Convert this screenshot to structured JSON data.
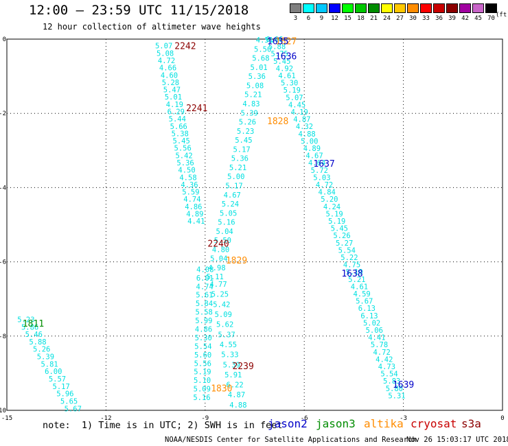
{
  "header": {
    "title": "12:00 – 23:59 UTC 11/15/2018",
    "subtitle": "12 hour collection of altimeter wave heights"
  },
  "legend": {
    "units": "(ft)",
    "bins": [
      {
        "label": "3",
        "color": "#7f7f7f"
      },
      {
        "label": "6",
        "color": "#00ffff"
      },
      {
        "label": "9",
        "color": "#00c8ff"
      },
      {
        "label": "12",
        "color": "#0000ff"
      },
      {
        "label": "15",
        "color": "#00ff00"
      },
      {
        "label": "18",
        "color": "#00c800"
      },
      {
        "label": "21",
        "color": "#008c00"
      },
      {
        "label": "24",
        "color": "#ffff00"
      },
      {
        "label": "27",
        "color": "#ffc800"
      },
      {
        "label": "30",
        "color": "#ff8c00"
      },
      {
        "label": "33",
        "color": "#ff0000"
      },
      {
        "label": "36",
        "color": "#c80000"
      },
      {
        "label": "39",
        "color": "#8c0000"
      },
      {
        "label": "42",
        "color": "#a000a0"
      },
      {
        "label": "45",
        "color": "#c864c8"
      },
      {
        "label": "70",
        "color": "#000000"
      }
    ]
  },
  "chart_data": {
    "type": "scatter",
    "xlim": [
      -15,
      0
    ],
    "ylim": [
      -10,
      0
    ],
    "x_ticks": [
      "-15",
      "-12",
      "-9",
      "-6",
      "-3",
      "0"
    ],
    "y_ticks": [
      "0",
      "-2",
      "-4",
      "-6",
      "-8",
      "-10"
    ],
    "grid": true,
    "tracks": [
      {
        "x0": -14.42,
        "y0": -7.55,
        "x1": -13.0,
        "y1": -9.95,
        "values": [
          "5.23",
          "5.86",
          "5.46",
          "5.88",
          "5.26",
          "5.39",
          "5.81",
          "6.00",
          "5.57",
          "5.17",
          "5.96",
          "5.65",
          "5.67"
        ]
      },
      {
        "x0": -10.25,
        "y0": -0.18,
        "x1": -9.27,
        "y1": -4.9,
        "values": [
          "5.07",
          "5.08",
          "4.72",
          "4.66",
          "4.60",
          "5.28",
          "5.47",
          "5.01",
          "4.19",
          "6.29",
          "5.44",
          "5.66",
          "5.38",
          "5.45",
          "5.56",
          "5.42",
          "5.36",
          "4.50",
          "4.58",
          "4.36",
          "5.59",
          "4.74",
          "4.86",
          "4.89",
          "4.41"
        ]
      },
      {
        "x0": -9.0,
        "y0": -6.2,
        "x1": -9.1,
        "y1": -9.65,
        "values": [
          "4.08",
          "6.01",
          "4.74",
          "5.61",
          "5.84",
          "5.58",
          "5.99",
          "4.86",
          "5.30",
          "5.54",
          "5.60",
          "5.56",
          "5.19",
          "5.10",
          "5.09",
          "5.16"
        ]
      },
      {
        "x0": -7.2,
        "y0": -0.02,
        "x1": -8.7,
        "y1": -6.4,
        "values": [
          "4.51",
          "5.50",
          "5.68",
          "5.01",
          "5.36",
          "5.08",
          "5.21",
          "4.83",
          "5.39",
          "5.26",
          "5.23",
          "5.45",
          "5.17",
          "5.36",
          "5.21",
          "5.00",
          "5.17",
          "4.67",
          "5.24",
          "5.05",
          "5.16",
          "5.04",
          "5.50",
          "4.80",
          "5.04",
          "4.98",
          "5.11"
        ]
      },
      {
        "x0": -8.6,
        "y0": -6.6,
        "x1": -8.0,
        "y1": -9.85,
        "values": [
          "4.77",
          "5.25",
          "5.42",
          "5.09",
          "5.62",
          "5.37",
          "4.55",
          "5.33",
          "5.39",
          "5.91",
          "6.22",
          "4.87",
          "4.88"
        ]
      },
      {
        "x0": -6.9,
        "y0": -0.0,
        "x1": -3.2,
        "y1": -9.6,
        "values": [
          "6.06",
          "5.88",
          "5.75",
          "5.45",
          "4.92",
          "4.61",
          "5.30",
          "5.19",
          "5.07",
          "4.45",
          "4.19",
          "4.87",
          "4.32",
          "4.88",
          "5.00",
          "4.89",
          "4.67",
          "4.64",
          "5.72",
          "5.03",
          "4.72",
          "4.84",
          "5.20",
          "4.24",
          "5.19",
          "5.19",
          "5.45",
          "5.26",
          "5.27",
          "5.54",
          "5.22",
          "4.75",
          "5.19",
          "5.21",
          "4.61",
          "4.59",
          "5.67",
          "6.13",
          "6.13",
          "5.02",
          "5.06",
          "4.41",
          "5.78",
          "4.72",
          "4.42",
          "4.73",
          "5.54",
          "5.83",
          "5.80",
          "5.31"
        ]
      }
    ],
    "track_labels": [
      {
        "text": "1811",
        "satellite": "jason3",
        "x": -14.2,
        "y": -7.65
      },
      {
        "text": "2242",
        "satellite": "s3a",
        "x": -9.6,
        "y": -0.18
      },
      {
        "text": "2241",
        "satellite": "s3a",
        "x": -9.25,
        "y": -1.85
      },
      {
        "text": "2240",
        "satellite": "s3a",
        "x": -8.6,
        "y": -5.5
      },
      {
        "text": "2239",
        "satellite": "s3a",
        "x": -7.85,
        "y": -8.8
      },
      {
        "text": "1829",
        "satellite": "altika",
        "x": -8.05,
        "y": -5.95
      },
      {
        "text": "1830",
        "satellite": "altika",
        "x": -8.5,
        "y": -9.4
      },
      {
        "text": "1828",
        "satellite": "altika",
        "x": -6.8,
        "y": -2.2
      },
      {
        "text": "1827",
        "satellite": "altika",
        "x": -6.55,
        "y": -0.05
      },
      {
        "text": "1635",
        "satellite": "jason2",
        "x": -6.8,
        "y": -0.05
      },
      {
        "text": "1636",
        "satellite": "jason2",
        "x": -6.55,
        "y": -0.45
      },
      {
        "text": "1637",
        "satellite": "jason2",
        "x": -5.4,
        "y": -3.35
      },
      {
        "text": "1638",
        "satellite": "jason2",
        "x": -4.55,
        "y": -6.3
      },
      {
        "text": "1639",
        "satellite": "jason2",
        "x": -3.0,
        "y": -9.3
      }
    ]
  },
  "notes": {
    "text": "note:  1) Time is in UTC; 2) SWH is in feet"
  },
  "satellites": [
    {
      "key": "jason2",
      "name": "jason2",
      "color": "#0000c8"
    },
    {
      "key": "jason3",
      "name": "jason3",
      "color": "#008c00"
    },
    {
      "key": "altika",
      "name": "altika",
      "color": "#ff8c00"
    },
    {
      "key": "cryosat",
      "name": "cryosat",
      "color": "#c80000"
    },
    {
      "key": "s3a",
      "name": "s3a",
      "color": "#8c0000"
    }
  ],
  "footer": {
    "credit": "NOAA/NESDIS Center for Satellite Applications and Research",
    "timestamp": "Nov 26 15:03:17 UTC 2018"
  },
  "colors": {
    "data_points": "#00e0e0",
    "grid": "#000000"
  }
}
